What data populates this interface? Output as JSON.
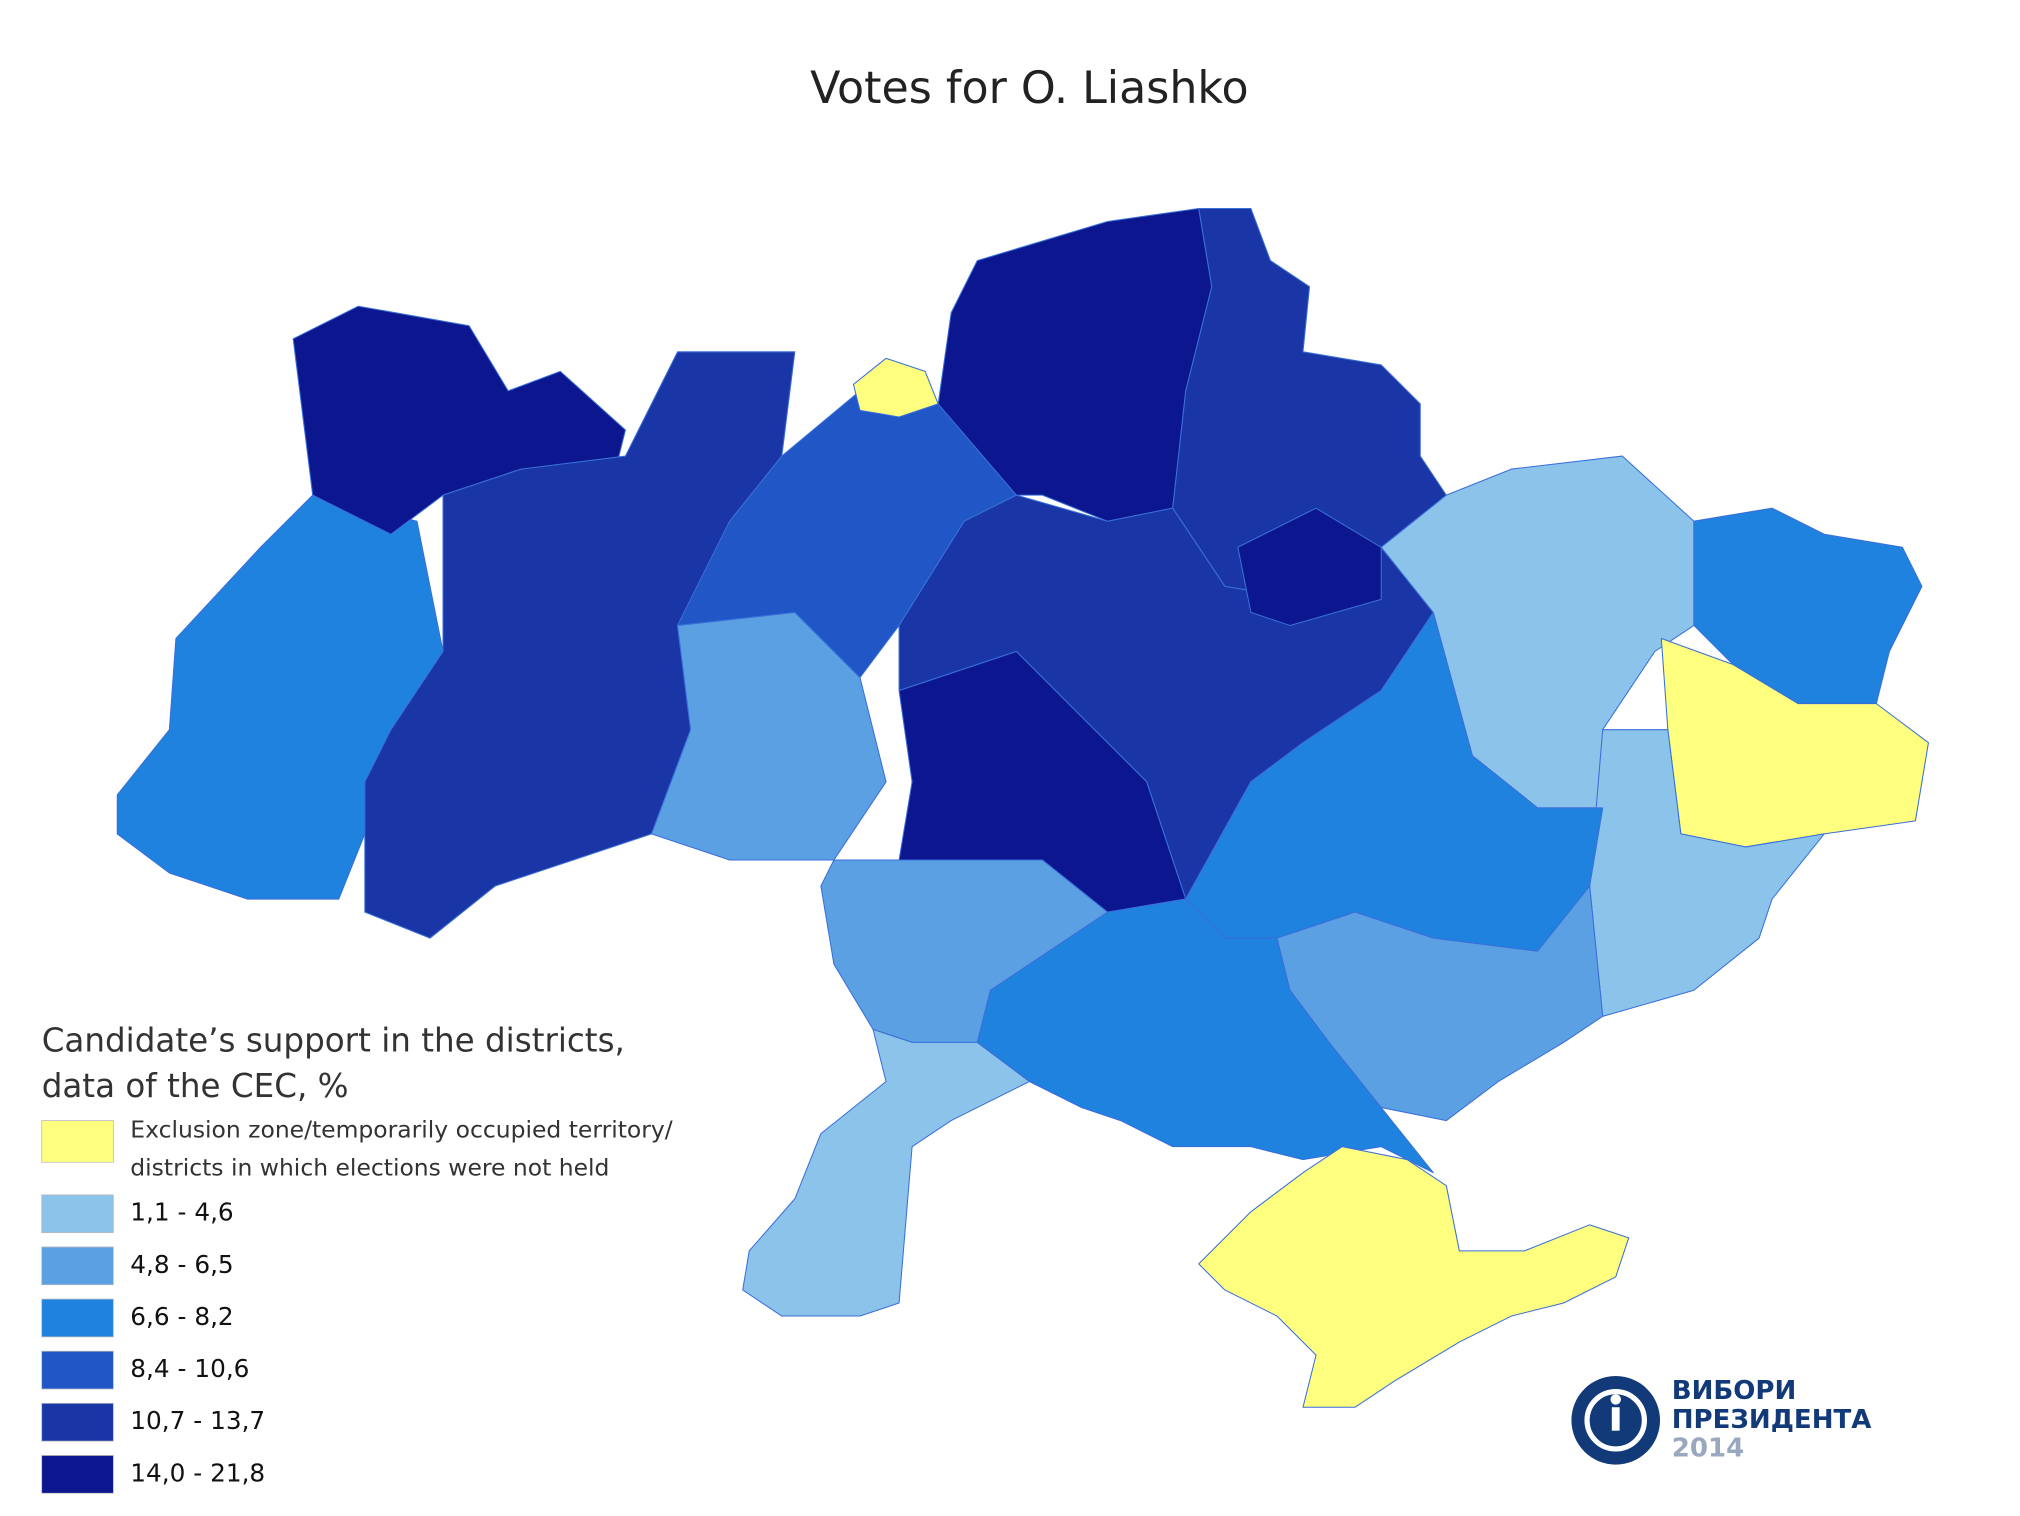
{
  "title": "Votes for O. Liashko",
  "legend": {
    "title": [
      "Candidate’s support in the districts,",
      "data of the CEC, %"
    ],
    "items": [
      {
        "lines": [
          "Exclusion zone/temporarily occupied territory/",
          "districts in which elections were not held"
        ],
        "color": "#ffff7f"
      },
      {
        "lines": [
          "1,1 - 4,6"
        ],
        "color": "#8cc3ea"
      },
      {
        "lines": [
          "4,8 - 6,5"
        ],
        "color": "#5ba0e3"
      },
      {
        "lines": [
          "6,6 - 8,2"
        ],
        "color": "#1f82df"
      },
      {
        "lines": [
          "8,4 - 10,6"
        ],
        "color": "#2056c6"
      },
      {
        "lines": [
          "10,7 - 13,7"
        ],
        "color": "#1a36a6"
      },
      {
        "lines": [
          "14,0 - 21,8"
        ],
        "color": "#0b168f"
      }
    ]
  },
  "logo": {
    "lines": [
      "ВИБОРИ",
      "ПРЕЗИДЕНТА",
      "2014"
    ]
  }
}
